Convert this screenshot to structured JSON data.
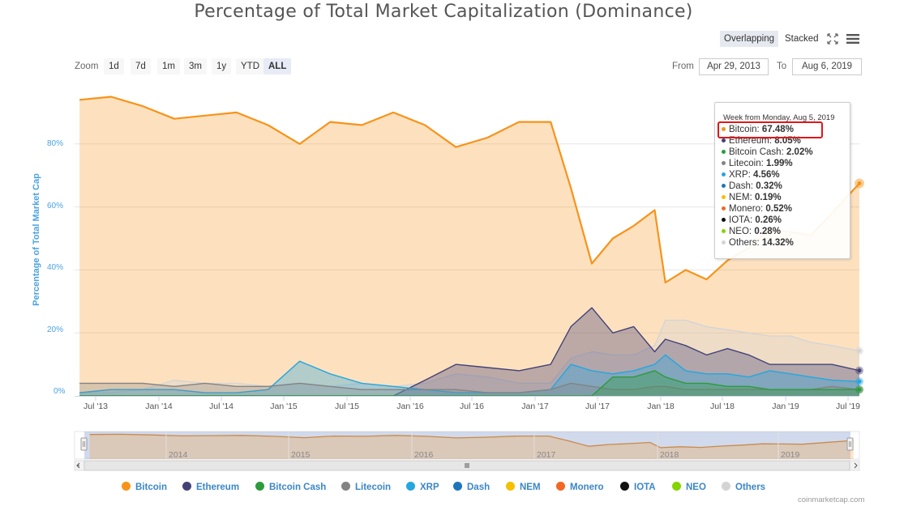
{
  "title": "Percentage of Total Market Capitalization (Dominance)",
  "toolbar": {
    "overlapping": "Overlapping",
    "stacked": "Stacked"
  },
  "zoom": {
    "label": "Zoom",
    "buttons": [
      "1d",
      "7d",
      "1m",
      "3m",
      "1y",
      "YTD",
      "ALL"
    ],
    "active": "ALL"
  },
  "range": {
    "from_label": "From",
    "from_value": "Apr 29, 2013",
    "to_label": "To",
    "to_value": "Aug 6, 2019"
  },
  "tooltip": {
    "header": "Week from Monday, Aug 5, 2019",
    "rows": [
      {
        "name": "Bitcoin",
        "value": "67.48%",
        "color": "#f7931a"
      },
      {
        "name": "Ethereum",
        "value": "8.05%",
        "color": "#434278"
      },
      {
        "name": "Bitcoin Cash",
        "value": "2.02%",
        "color": "#2d9b3c"
      },
      {
        "name": "Litecoin",
        "value": "1.99%",
        "color": "#838383"
      },
      {
        "name": "XRP",
        "value": "4.56%",
        "color": "#24a6e0"
      },
      {
        "name": "Dash",
        "value": "0.32%",
        "color": "#1c75bc"
      },
      {
        "name": "NEM",
        "value": "0.19%",
        "color": "#f5c000"
      },
      {
        "name": "Monero",
        "value": "0.52%",
        "color": "#f26722"
      },
      {
        "name": "IOTA",
        "value": "0.26%",
        "color": "#111111"
      },
      {
        "name": "NEO",
        "value": "0.28%",
        "color": "#84d400"
      },
      {
        "name": "Others",
        "value": "14.32%",
        "color": "#d4d4d4"
      }
    ]
  },
  "navigator": {
    "years": [
      "2014",
      "2015",
      "2016",
      "2017",
      "2018",
      "2019"
    ]
  },
  "legend": [
    {
      "name": "Bitcoin",
      "color": "#f7931a"
    },
    {
      "name": "Ethereum",
      "color": "#434278"
    },
    {
      "name": "Bitcoin Cash",
      "color": "#2d9b3c"
    },
    {
      "name": "Litecoin",
      "color": "#838383"
    },
    {
      "name": "XRP",
      "color": "#24a6e0"
    },
    {
      "name": "Dash",
      "color": "#1c75bc"
    },
    {
      "name": "NEM",
      "color": "#f5c000"
    },
    {
      "name": "Monero",
      "color": "#f26722"
    },
    {
      "name": "IOTA",
      "color": "#111111"
    },
    {
      "name": "NEO",
      "color": "#84d400"
    },
    {
      "name": "Others",
      "color": "#d4d4d4"
    }
  ],
  "credit": "coinmarketcap.com",
  "chart_data": {
    "type": "area",
    "title": "Percentage of Total Market Capitalization (Dominance)",
    "ylabel": "Percentage of Total Market Cap",
    "xlabel": "",
    "ylim": [
      0,
      100
    ],
    "yticks": [
      "0%",
      "20%",
      "40%",
      "60%",
      "80%"
    ],
    "xticks": [
      "Jul '13",
      "Jan '14",
      "Jul '14",
      "Jan '15",
      "Jul '15",
      "Jan '16",
      "Jul '16",
      "Jan '17",
      "Jul '17",
      "Jan '18",
      "Jul '18",
      "Jan '19",
      "Jul '19"
    ],
    "x": [
      "2013-05",
      "2013-08",
      "2013-11",
      "2014-02",
      "2014-05",
      "2014-08",
      "2014-11",
      "2015-02",
      "2015-05",
      "2015-08",
      "2015-11",
      "2016-02",
      "2016-05",
      "2016-08",
      "2016-11",
      "2017-02",
      "2017-04",
      "2017-06",
      "2017-08",
      "2017-10",
      "2017-12",
      "2018-01",
      "2018-03",
      "2018-05",
      "2018-07",
      "2018-09",
      "2018-11",
      "2019-01",
      "2019-03",
      "2019-05",
      "2019-08"
    ],
    "series": [
      {
        "name": "Bitcoin",
        "values": [
          94,
          95,
          92,
          88,
          89,
          90,
          86,
          80,
          87,
          86,
          90,
          86,
          79,
          82,
          87,
          87,
          66,
          42,
          50,
          54,
          59,
          36,
          40,
          37,
          43,
          47,
          53,
          52,
          51,
          58,
          67.48
        ]
      },
      {
        "name": "Ethereum",
        "values": [
          0,
          0,
          0,
          0,
          0,
          0,
          0,
          0,
          0,
          0,
          0,
          5,
          10,
          9,
          8,
          10,
          22,
          28,
          20,
          22,
          14,
          18,
          16,
          13,
          15,
          13,
          10,
          10,
          10,
          10,
          8.05
        ]
      },
      {
        "name": "XRP",
        "values": [
          1,
          2,
          2,
          2,
          1,
          1,
          2,
          11,
          7,
          4,
          3,
          2,
          1,
          1,
          1,
          2,
          10,
          8,
          7,
          8,
          10,
          13,
          8,
          7,
          7,
          6,
          8,
          7,
          6,
          5,
          4.56
        ]
      },
      {
        "name": "Bitcoin Cash",
        "values": [
          0,
          0,
          0,
          0,
          0,
          0,
          0,
          0,
          0,
          0,
          0,
          0,
          0,
          0,
          0,
          0,
          0,
          0,
          6,
          6,
          8,
          6,
          4,
          4,
          3,
          3,
          2,
          2,
          2,
          2,
          2.02
        ]
      },
      {
        "name": "Litecoin",
        "values": [
          4,
          4,
          4,
          3,
          4,
          3,
          3,
          4,
          3,
          2,
          2,
          2,
          2,
          1,
          1,
          2,
          4,
          3,
          2,
          2,
          3,
          3,
          2,
          2,
          2,
          2,
          2,
          2,
          2,
          3,
          1.99
        ]
      },
      {
        "name": "Others",
        "values": [
          1,
          1,
          2,
          5,
          4,
          4,
          3,
          4,
          3,
          4,
          3,
          4,
          7,
          6,
          4,
          4,
          12,
          14,
          13,
          13,
          16,
          24,
          24,
          22,
          21,
          20,
          19,
          19,
          17,
          16,
          14.32
        ]
      }
    ]
  }
}
